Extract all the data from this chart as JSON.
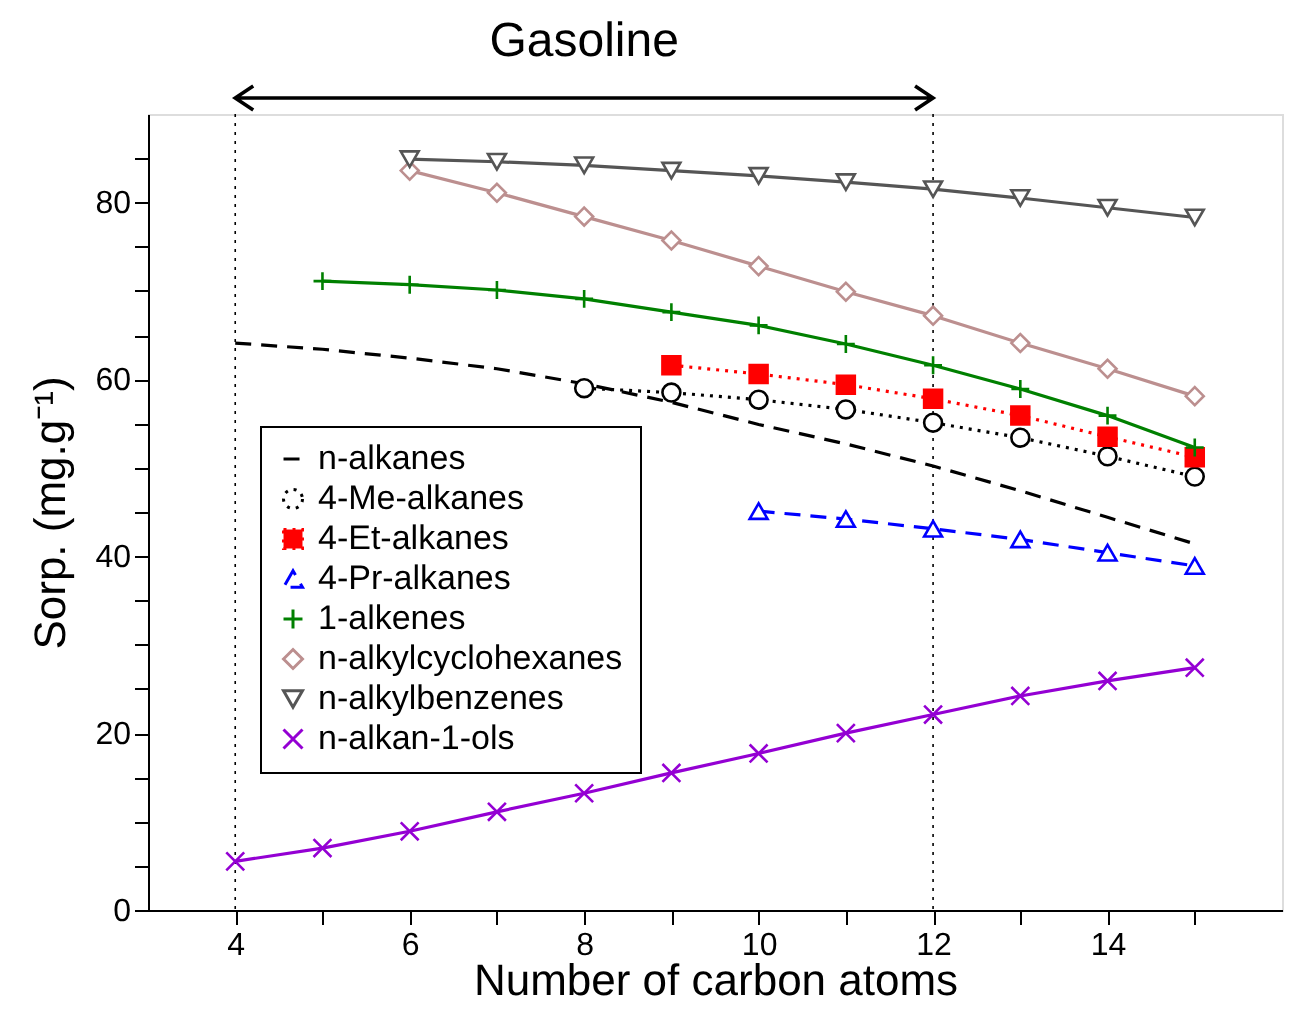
{
  "chart_data": {
    "type": "line",
    "xlabel": "Number of carbon atoms",
    "ylabel": "Sorp. (mg.g⁻¹)",
    "xlim": [
      3,
      16
    ],
    "ylim": [
      0,
      90
    ],
    "xticks": [
      4,
      {
        "value": 5,
        "label": null
      },
      6,
      {
        "value": 7,
        "label": null
      },
      8,
      {
        "value": 9,
        "label": null
      },
      10,
      {
        "value": 11,
        "label": null
      },
      12,
      {
        "value": 13,
        "label": null
      },
      14,
      {
        "value": 15,
        "label": null
      }
    ],
    "yticks": [
      0,
      {
        "value": 5,
        "label": null
      },
      {
        "value": 10,
        "label": null
      },
      {
        "value": 15,
        "label": null
      },
      20,
      {
        "value": 25,
        "label": null
      },
      {
        "value": 30,
        "label": null
      },
      {
        "value": 35,
        "label": null
      },
      40,
      {
        "value": 45,
        "label": null
      },
      {
        "value": 50,
        "label": null
      },
      {
        "value": 55,
        "label": null
      },
      60,
      {
        "value": 65,
        "label": null
      },
      {
        "value": 70,
        "label": null
      },
      {
        "value": 75,
        "label": null
      },
      80,
      {
        "value": 85,
        "label": null
      }
    ],
    "grid": false,
    "legend": "left",
    "annotations": [
      "Gasoline"
    ],
    "ref_lines": [
      {
        "axis": "x",
        "value": 4,
        "color": "#000000",
        "line_style": "dotted"
      },
      {
        "axis": "x",
        "value": 12,
        "color": "#000000",
        "line_style": "dotted"
      }
    ],
    "series": [
      {
        "name": "n-alkanes",
        "color": "#000000",
        "marker": "none",
        "line_style": "dashed",
        "x": [
          4,
          5,
          6,
          7,
          8,
          9,
          10,
          11,
          12,
          13,
          14,
          15
        ],
        "values": [
          64.1,
          63.4,
          62.4,
          61.2,
          59.5,
          57.4,
          54.9,
          52.7,
          50.2,
          47.4,
          44.4,
          41.4
        ]
      },
      {
        "name": "4-Me-alkanes",
        "color": "#000000",
        "marker": "circle",
        "line_style": "dotted",
        "x": [
          8,
          9,
          10,
          11,
          12,
          13,
          14,
          15
        ],
        "values": [
          59.0,
          58.5,
          57.7,
          56.6,
          55.1,
          53.4,
          51.3,
          49.0
        ]
      },
      {
        "name": "4-Et-alkanes",
        "color": "#ff0000",
        "marker": "square",
        "line_style": "dotted",
        "x": [
          9,
          10,
          11,
          12,
          13,
          14,
          15
        ],
        "values": [
          61.6,
          60.6,
          59.4,
          57.8,
          55.9,
          53.5,
          51.2
        ]
      },
      {
        "name": "4-Pr-alkanes",
        "color": "#0000ff",
        "marker": "triangle",
        "line_style": "dashed",
        "x": [
          10,
          11,
          12,
          13,
          14,
          15
        ],
        "values": [
          45.1,
          44.2,
          43.1,
          41.9,
          40.4,
          38.9
        ]
      },
      {
        "name": "1-alkenes",
        "color": "#008000",
        "marker": "cross",
        "line_style": "solid",
        "x": [
          5,
          6,
          7,
          8,
          9,
          10,
          11,
          12,
          13,
          14,
          15
        ],
        "values": [
          71.1,
          70.7,
          70.1,
          69.1,
          67.6,
          66.1,
          64.0,
          61.6,
          58.9,
          55.9,
          52.3
        ]
      },
      {
        "name": "n-alkylcyclohexanes",
        "color": "#bc8f8f",
        "marker": "diamond",
        "line_style": "solid",
        "x": [
          6,
          7,
          8,
          9,
          10,
          11,
          12,
          13,
          14,
          15
        ],
        "values": [
          83.6,
          81.1,
          78.4,
          75.7,
          72.8,
          69.9,
          67.2,
          64.1,
          61.2,
          58.1
        ]
      },
      {
        "name": "n-alkylbenzenes",
        "color": "#555555",
        "marker": "triangle-down",
        "line_style": "solid",
        "x": [
          6,
          7,
          8,
          9,
          10,
          11,
          12,
          13,
          14,
          15
        ],
        "values": [
          84.9,
          84.6,
          84.2,
          83.6,
          83.0,
          82.3,
          81.5,
          80.5,
          79.4,
          78.3
        ]
      },
      {
        "name": "n-alkan-1-ols",
        "color": "#9400d3",
        "marker": "x",
        "line_style": "solid",
        "x": [
          4,
          5,
          6,
          7,
          8,
          9,
          10,
          11,
          12,
          13,
          14,
          15
        ],
        "values": [
          5.5,
          7.0,
          8.9,
          11.1,
          13.2,
          15.5,
          17.7,
          20.0,
          22.1,
          24.2,
          25.9,
          27.4
        ]
      }
    ]
  }
}
